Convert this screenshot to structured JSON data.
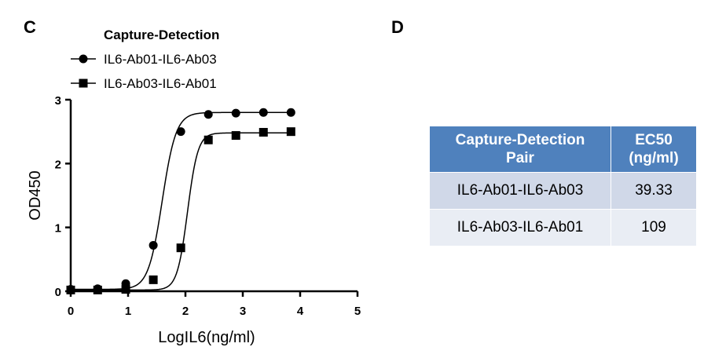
{
  "panels": {
    "left_letter": "C",
    "right_letter": "D"
  },
  "chart_data": {
    "type": "scatter",
    "legend_title": "Capture-Detection",
    "legend_position": "top-left",
    "xlabel": "LogIL6(ng/ml)",
    "ylabel": "OD450",
    "xlim": [
      0,
      5
    ],
    "ylim": [
      0,
      3
    ],
    "xticks": [
      "0",
      "1",
      "2",
      "3",
      "4",
      "5"
    ],
    "yticks": [
      "0",
      "1",
      "2",
      "3"
    ],
    "grid": false,
    "series": [
      {
        "name": "IL6-Ab01-IL6-Ab03",
        "marker": "circle",
        "x": [
          0,
          0.47,
          0.96,
          1.44,
          1.92,
          2.4,
          2.88,
          3.36,
          3.84
        ],
        "y": [
          0.03,
          0.04,
          0.12,
          0.72,
          2.5,
          2.77,
          2.79,
          2.8,
          2.8
        ],
        "fit": {
          "bottom": 0.03,
          "top": 2.8,
          "logEC50": 1.595,
          "hill": 3.6
        }
      },
      {
        "name": "IL6-Ab03-IL6-Ab01",
        "marker": "square",
        "x": [
          0,
          0.47,
          0.96,
          1.44,
          1.92,
          2.4,
          2.88,
          3.36,
          3.84
        ],
        "y": [
          0.02,
          0.02,
          0.03,
          0.18,
          0.68,
          2.37,
          2.44,
          2.49,
          2.5
        ],
        "fit": {
          "bottom": 0.02,
          "top": 2.48,
          "logEC50": 2.037,
          "hill": 4.8
        }
      }
    ]
  },
  "ec50_table": {
    "headers": [
      "Capture-Detection\nPair",
      "EC50\n(ng/ml)"
    ],
    "rows": [
      [
        "IL6-Ab01-IL6-Ab03",
        "39.33"
      ],
      [
        "IL6-Ab03-IL6-Ab01",
        "109"
      ]
    ]
  }
}
